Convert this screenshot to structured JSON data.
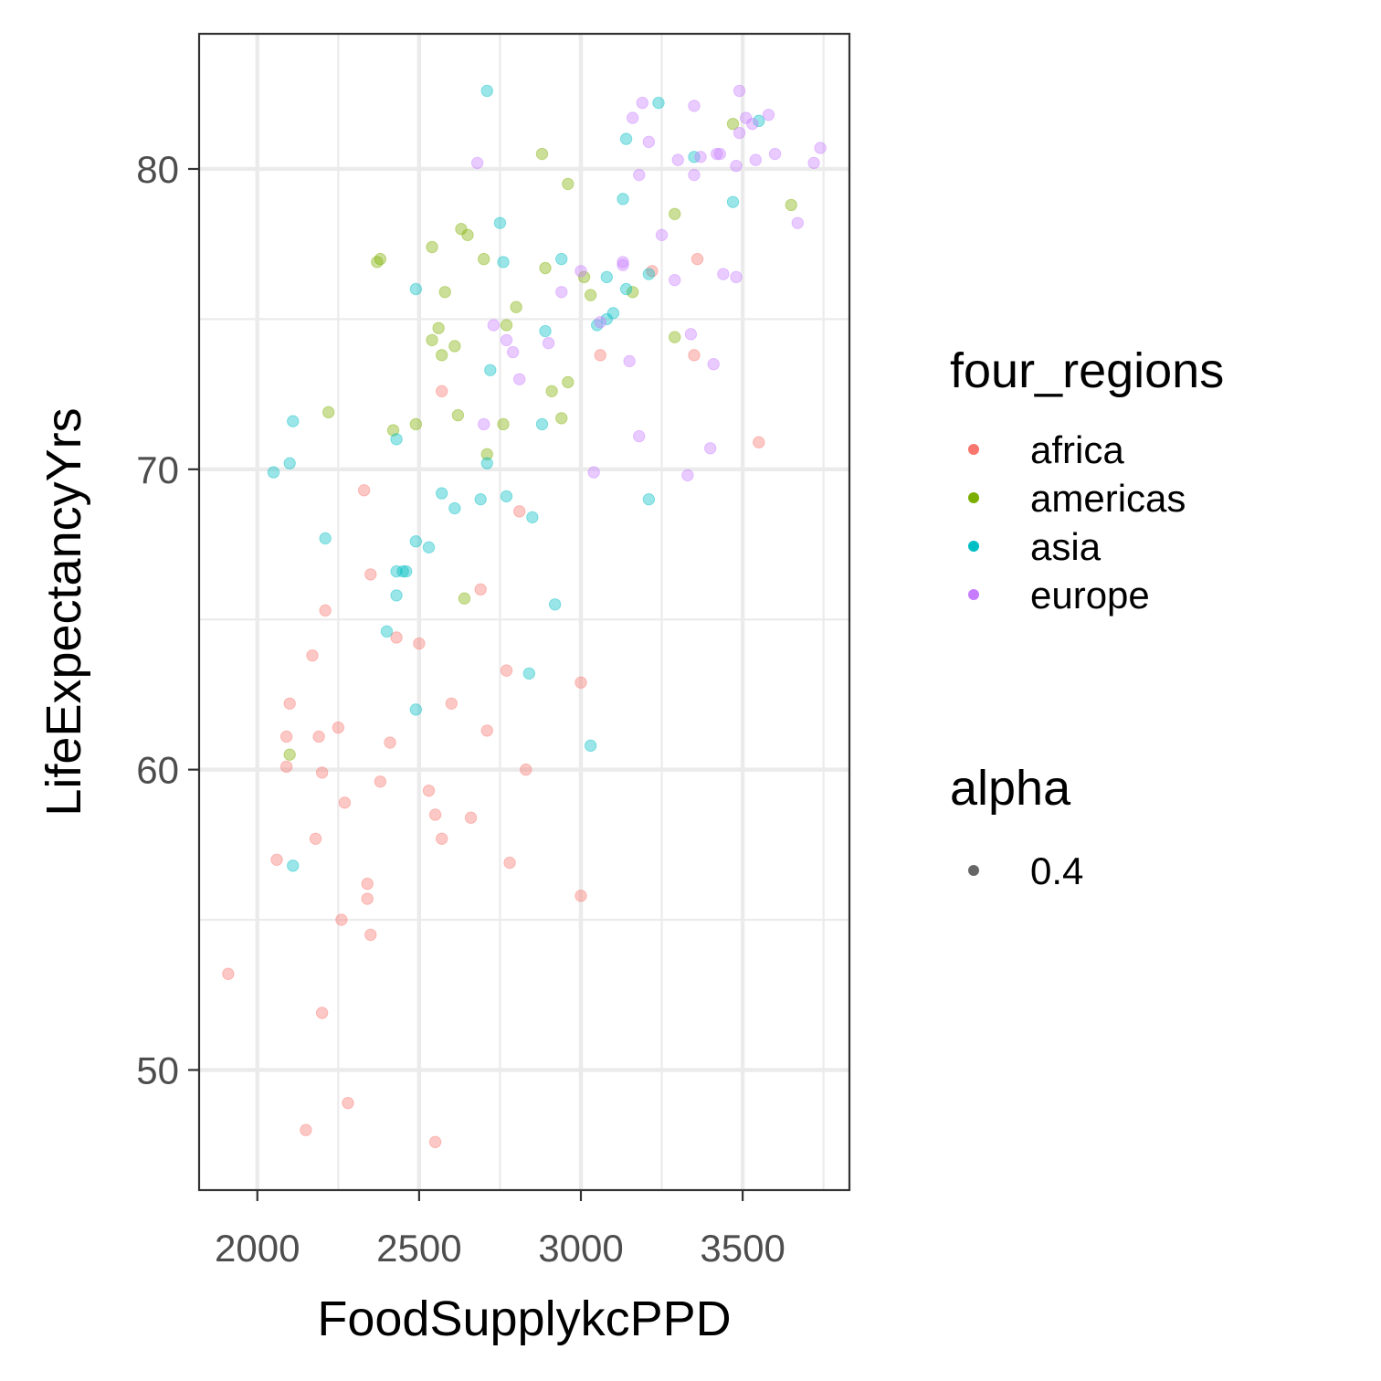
{
  "chart_data": {
    "type": "scatter",
    "xlabel": "FoodSupplykcPPD",
    "ylabel": "LifeExpectancyYrs",
    "xlim": [
      1820,
      3830
    ],
    "ylim": [
      46.0,
      84.5
    ],
    "x_ticks": [
      2000,
      2500,
      3000,
      3500
    ],
    "y_ticks": [
      50,
      60,
      70,
      80
    ],
    "x_tick_labels": [
      "2000",
      "2500",
      "3000",
      "3500"
    ],
    "y_tick_labels": [
      "50",
      "60",
      "70",
      "80"
    ],
    "grid": true,
    "legend_position": "right",
    "legends": [
      {
        "title": "four_regions",
        "entries": [
          {
            "label": "africa",
            "color": "#F8766D"
          },
          {
            "label": "americas",
            "color": "#7CAE00"
          },
          {
            "label": "asia",
            "color": "#00BFC4"
          },
          {
            "label": "europe",
            "color": "#C77CFF"
          }
        ]
      },
      {
        "title": "alpha",
        "entries": [
          {
            "label": "0.4",
            "color": "#000000"
          }
        ]
      }
    ],
    "point_alpha": 0.4,
    "series": [
      {
        "name": "africa",
        "color": "#F8766D",
        "points": [
          [
            1910,
            53.2
          ],
          [
            2150,
            48.0
          ],
          [
            2200,
            51.9
          ],
          [
            2260,
            55.0
          ],
          [
            2280,
            48.9
          ],
          [
            2350,
            54.5
          ],
          [
            2340,
            55.7
          ],
          [
            2340,
            56.2
          ],
          [
            2550,
            47.6
          ],
          [
            2060,
            57.0
          ],
          [
            2090,
            60.1
          ],
          [
            2090,
            61.1
          ],
          [
            2100,
            62.2
          ],
          [
            2170,
            63.8
          ],
          [
            2180,
            57.7
          ],
          [
            2190,
            61.1
          ],
          [
            2200,
            59.9
          ],
          [
            2210,
            65.3
          ],
          [
            2250,
            61.4
          ],
          [
            2270,
            58.9
          ],
          [
            2330,
            69.3
          ],
          [
            2350,
            66.5
          ],
          [
            2380,
            59.6
          ],
          [
            2410,
            60.9
          ],
          [
            2430,
            64.4
          ],
          [
            2500,
            64.2
          ],
          [
            2530,
            59.3
          ],
          [
            2550,
            58.5
          ],
          [
            2570,
            57.7
          ],
          [
            2570,
            72.6
          ],
          [
            2600,
            62.2
          ],
          [
            2660,
            58.4
          ],
          [
            2690,
            66.0
          ],
          [
            2710,
            61.3
          ],
          [
            2770,
            63.3
          ],
          [
            2780,
            56.9
          ],
          [
            2810,
            68.6
          ],
          [
            2830,
            60.0
          ],
          [
            3000,
            62.9
          ],
          [
            3000,
            55.8
          ],
          [
            3060,
            73.8
          ],
          [
            3220,
            76.6
          ],
          [
            3350,
            73.8
          ],
          [
            3360,
            77.0
          ],
          [
            3550,
            70.9
          ]
        ]
      },
      {
        "name": "americas",
        "color": "#7CAE00",
        "points": [
          [
            2100,
            60.5
          ],
          [
            2220,
            71.9
          ],
          [
            2370,
            76.9
          ],
          [
            2380,
            77.0
          ],
          [
            2420,
            71.3
          ],
          [
            2490,
            71.5
          ],
          [
            2540,
            77.4
          ],
          [
            2540,
            74.3
          ],
          [
            2560,
            74.7
          ],
          [
            2570,
            73.8
          ],
          [
            2580,
            75.9
          ],
          [
            2610,
            74.1
          ],
          [
            2620,
            71.8
          ],
          [
            2630,
            78.0
          ],
          [
            2640,
            65.7
          ],
          [
            2650,
            77.8
          ],
          [
            2700,
            77.0
          ],
          [
            2710,
            70.5
          ],
          [
            2760,
            71.5
          ],
          [
            2770,
            74.8
          ],
          [
            2800,
            75.4
          ],
          [
            2880,
            80.5
          ],
          [
            2890,
            76.7
          ],
          [
            2910,
            72.6
          ],
          [
            2940,
            71.7
          ],
          [
            2960,
            72.9
          ],
          [
            2960,
            79.5
          ],
          [
            3010,
            76.4
          ],
          [
            3030,
            75.8
          ],
          [
            3160,
            75.9
          ],
          [
            3290,
            74.4
          ],
          [
            3290,
            78.5
          ],
          [
            3470,
            81.5
          ],
          [
            3650,
            78.8
          ]
        ]
      },
      {
        "name": "asia",
        "color": "#00BFC4",
        "points": [
          [
            2050,
            69.9
          ],
          [
            2100,
            70.2
          ],
          [
            2110,
            71.6
          ],
          [
            2110,
            56.8
          ],
          [
            2210,
            67.7
          ],
          [
            2400,
            64.6
          ],
          [
            2430,
            66.6
          ],
          [
            2430,
            65.8
          ],
          [
            2430,
            71.0
          ],
          [
            2450,
            66.6
          ],
          [
            2460,
            66.6
          ],
          [
            2490,
            67.6
          ],
          [
            2490,
            76.0
          ],
          [
            2490,
            62.0
          ],
          [
            2530,
            67.4
          ],
          [
            2570,
            69.2
          ],
          [
            2610,
            68.7
          ],
          [
            2690,
            69.0
          ],
          [
            2710,
            70.2
          ],
          [
            2710,
            82.6
          ],
          [
            2720,
            73.3
          ],
          [
            2750,
            78.2
          ],
          [
            2760,
            76.9
          ],
          [
            2770,
            69.1
          ],
          [
            2840,
            63.2
          ],
          [
            2850,
            68.4
          ],
          [
            2880,
            71.5
          ],
          [
            2890,
            74.6
          ],
          [
            2920,
            65.5
          ],
          [
            2940,
            77.0
          ],
          [
            3030,
            60.8
          ],
          [
            3050,
            74.8
          ],
          [
            3080,
            75.0
          ],
          [
            3080,
            76.4
          ],
          [
            3100,
            75.2
          ],
          [
            3130,
            79.0
          ],
          [
            3140,
            81.0
          ],
          [
            3140,
            76.0
          ],
          [
            3210,
            69.0
          ],
          [
            3210,
            76.5
          ],
          [
            3240,
            82.2
          ],
          [
            3350,
            80.4
          ],
          [
            3470,
            78.9
          ],
          [
            3550,
            81.6
          ]
        ]
      },
      {
        "name": "europe",
        "color": "#C77CFF",
        "points": [
          [
            2680,
            80.2
          ],
          [
            2700,
            71.5
          ],
          [
            2730,
            74.8
          ],
          [
            2770,
            74.3
          ],
          [
            2790,
            73.9
          ],
          [
            2810,
            73.0
          ],
          [
            2900,
            74.2
          ],
          [
            2940,
            75.9
          ],
          [
            3000,
            76.6
          ],
          [
            3040,
            69.9
          ],
          [
            3060,
            74.9
          ],
          [
            3130,
            76.9
          ],
          [
            3130,
            76.8
          ],
          [
            3150,
            73.6
          ],
          [
            3160,
            81.7
          ],
          [
            3180,
            79.8
          ],
          [
            3180,
            71.1
          ],
          [
            3190,
            82.2
          ],
          [
            3210,
            80.9
          ],
          [
            3250,
            77.8
          ],
          [
            3290,
            76.3
          ],
          [
            3300,
            80.3
          ],
          [
            3330,
            69.8
          ],
          [
            3340,
            74.5
          ],
          [
            3350,
            79.8
          ],
          [
            3350,
            82.1
          ],
          [
            3370,
            80.4
          ],
          [
            3400,
            70.7
          ],
          [
            3410,
            73.5
          ],
          [
            3420,
            80.5
          ],
          [
            3430,
            80.5
          ],
          [
            3440,
            76.5
          ],
          [
            3480,
            80.1
          ],
          [
            3480,
            76.4
          ],
          [
            3490,
            82.6
          ],
          [
            3490,
            81.2
          ],
          [
            3510,
            81.7
          ],
          [
            3530,
            81.5
          ],
          [
            3540,
            80.3
          ],
          [
            3580,
            81.8
          ],
          [
            3600,
            80.5
          ],
          [
            3670,
            78.2
          ],
          [
            3720,
            80.2
          ],
          [
            3740,
            80.7
          ]
        ]
      }
    ]
  }
}
